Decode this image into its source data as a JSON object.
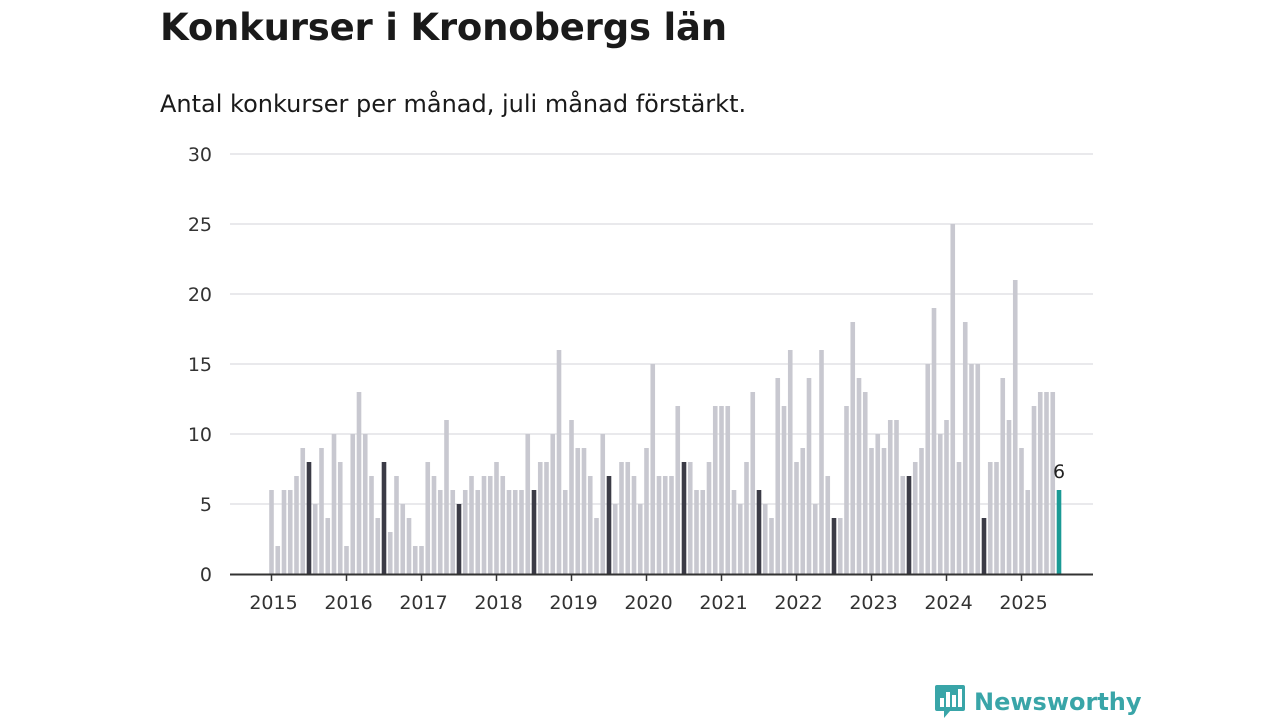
{
  "title": "Konkurser i Kronobergs län",
  "subtitle": "Antal konkurser per månad, juli månad förstärkt.",
  "brand": {
    "name": "Newsworthy",
    "icon": "newsworthy-logo-icon",
    "color": "#39a5a8"
  },
  "chart_data": {
    "type": "bar",
    "title": "Konkurser i Kronobergs län",
    "subtitle": "Antal konkurser per månad, juli månad förstärkt.",
    "xlabel": "",
    "ylabel": "",
    "ylim": [
      0,
      30
    ],
    "yticks": [
      0,
      5,
      10,
      15,
      20,
      25,
      30
    ],
    "grid": true,
    "x_tick_labels": [
      "2015",
      "2016",
      "2017",
      "2018",
      "2019",
      "2020",
      "2021",
      "2022",
      "2023",
      "2024",
      "2025"
    ],
    "start": "2015-01",
    "end": "2025-07",
    "highlight_month": "juli",
    "colors": {
      "normal": "#c8c8d0",
      "july": "#3b3b46",
      "latest": "#1a9a95"
    },
    "latest_label": "6",
    "values": [
      6,
      2,
      6,
      6,
      7,
      9,
      8,
      5,
      9,
      4,
      10,
      8,
      2,
      10,
      13,
      10,
      7,
      4,
      8,
      3,
      7,
      5,
      4,
      2,
      2,
      8,
      7,
      6,
      11,
      6,
      5,
      6,
      7,
      6,
      7,
      7,
      8,
      7,
      6,
      6,
      6,
      10,
      6,
      8,
      8,
      10,
      16,
      6,
      11,
      9,
      9,
      7,
      4,
      10,
      7,
      5,
      8,
      8,
      7,
      5,
      9,
      15,
      7,
      7,
      7,
      12,
      8,
      8,
      6,
      6,
      8,
      12,
      12,
      12,
      6,
      5,
      8,
      13,
      6,
      5,
      4,
      14,
      12,
      16,
      8,
      9,
      14,
      5,
      16,
      7,
      4,
      4,
      12,
      18,
      14,
      13,
      9,
      10,
      9,
      11,
      11,
      7,
      7,
      8,
      9,
      15,
      19,
      10,
      11,
      25,
      8,
      18,
      15,
      15,
      4,
      8,
      8,
      14,
      11,
      21,
      9,
      6,
      12,
      13,
      13,
      13,
      6
    ]
  }
}
